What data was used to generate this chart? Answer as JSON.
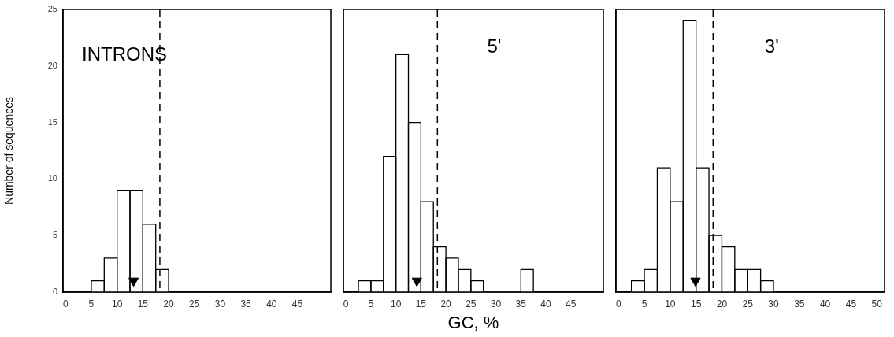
{
  "chart_data": [
    {
      "type": "histogram",
      "title": "INTRONS",
      "ylabel": "Number of sequences",
      "xlim": [
        -0.5,
        51.5
      ],
      "xticks": [
        0,
        5,
        10,
        15,
        20,
        25,
        30,
        35,
        40,
        45
      ],
      "ylim": [
        0,
        25
      ],
      "yticks": [
        0,
        5,
        10,
        15,
        20,
        25
      ],
      "grid": false,
      "legend": false,
      "ref_lines": [
        {
          "axis": "x",
          "value": 18.3,
          "line_style": "dashed",
          "color": "#000000"
        }
      ],
      "series": [
        {
          "type": "histogram",
          "bins": [
            5,
            7.5,
            10,
            12.5,
            15,
            17.5,
            20
          ],
          "values": [
            1,
            3,
            9,
            9,
            6,
            2
          ],
          "color": "#ffffff"
        },
        {
          "type": "scatter",
          "x": [
            13.2
          ],
          "values": [
            1
          ],
          "color": "#000000",
          "marker": "triangle"
        }
      ]
    },
    {
      "type": "histogram",
      "title": "5'",
      "xlabel": "GC, %",
      "xlim": [
        -0.5,
        51.5
      ],
      "xticks": [
        0,
        5,
        10,
        15,
        20,
        25,
        30,
        35,
        40,
        45
      ],
      "ylim": [
        0,
        25
      ],
      "yticks": [
        0,
        5,
        10,
        15,
        20,
        25
      ],
      "tick_labels": "x",
      "grid": false,
      "legend": false,
      "ref_lines": [
        {
          "axis": "x",
          "value": 18.3,
          "line_style": "dashed",
          "color": "#000000"
        }
      ],
      "series": [
        {
          "type": "histogram",
          "bins": [
            2.5,
            5,
            7.5,
            10,
            12.5,
            15,
            17.5,
            20,
            22.5,
            25,
            27.5,
            30,
            32.5,
            35,
            37.5
          ],
          "values": [
            1,
            1,
            12,
            21,
            15,
            8,
            4,
            3,
            2,
            1,
            0,
            0,
            0,
            2
          ],
          "color": "#ffffff"
        },
        {
          "type": "scatter",
          "x": [
            14.2
          ],
          "values": [
            1
          ],
          "color": "#000000",
          "marker": "triangle"
        }
      ]
    },
    {
      "type": "histogram",
      "title": "3'",
      "xlim": [
        -0.5,
        51.5
      ],
      "xticks": [
        0,
        5,
        10,
        15,
        20,
        25,
        30,
        35,
        40,
        45,
        50
      ],
      "ylim": [
        0,
        25
      ],
      "yticks": [
        0,
        5,
        10,
        15,
        20,
        25
      ],
      "tick_labels": "x",
      "grid": false,
      "legend": false,
      "ref_lines": [
        {
          "axis": "x",
          "value": 18.3,
          "line_style": "dashed",
          "color": "#000000"
        }
      ],
      "series": [
        {
          "type": "histogram",
          "bins": [
            2.5,
            5,
            7.5,
            10,
            12.5,
            15,
            17.5,
            20,
            22.5,
            25,
            27.5,
            30
          ],
          "values": [
            1,
            2,
            11,
            8,
            24,
            11,
            5,
            4,
            2,
            2,
            1
          ],
          "color": "#ffffff"
        },
        {
          "type": "scatter",
          "x": [
            14.9
          ],
          "values": [
            1
          ],
          "color": "#000000",
          "marker": "triangle"
        }
      ]
    }
  ]
}
